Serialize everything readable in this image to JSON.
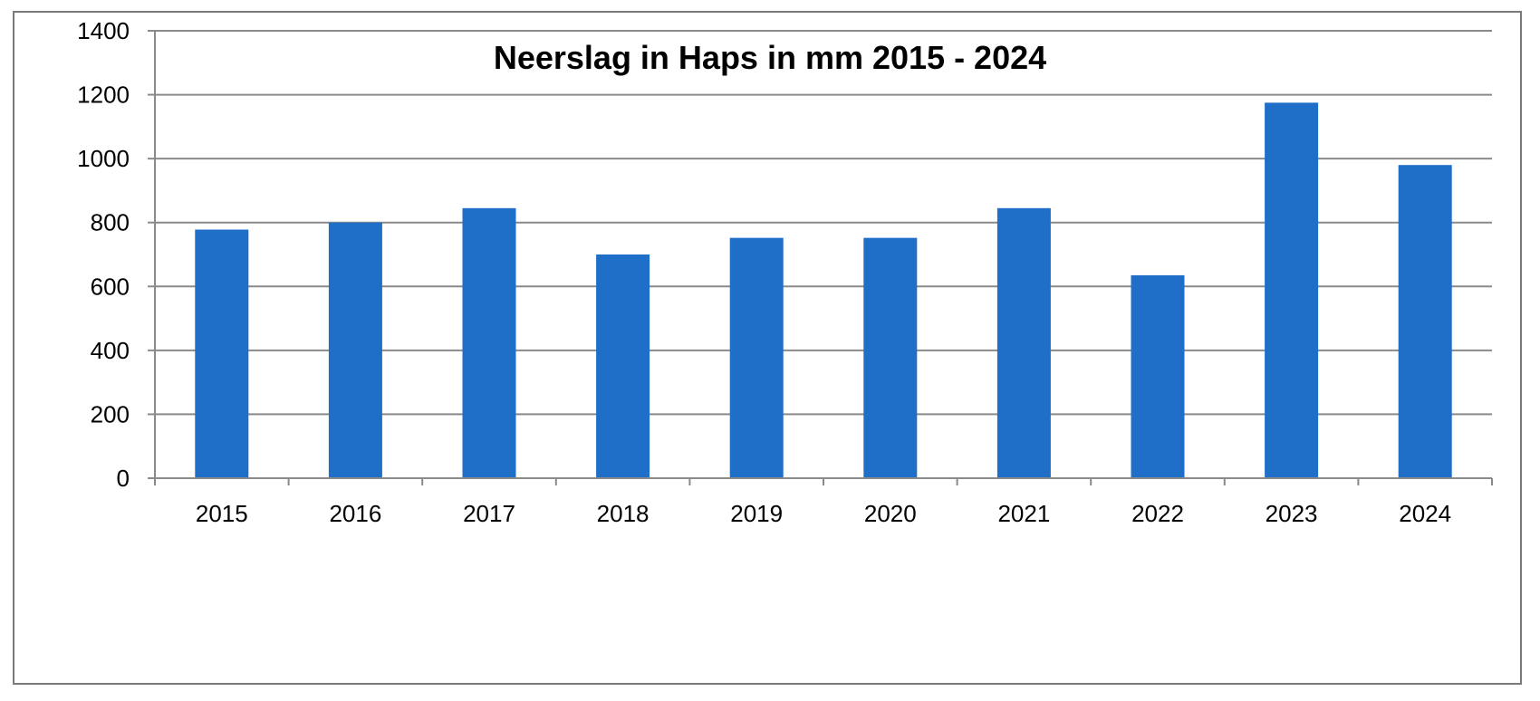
{
  "chart_data": {
    "type": "bar",
    "title": "Neerslag in Haps in mm 2015 - 2024",
    "xlabel": "",
    "ylabel": "",
    "categories": [
      "2015",
      "2016",
      "2017",
      "2018",
      "2019",
      "2020",
      "2021",
      "2022",
      "2023",
      "2024"
    ],
    "values": [
      778,
      800,
      845,
      700,
      752,
      752,
      845,
      635,
      1175,
      980
    ],
    "ylim": [
      0,
      1400
    ],
    "yticks": [
      0,
      200,
      400,
      600,
      800,
      1000,
      1200,
      1400
    ],
    "grid": true,
    "legend": "none",
    "colors": {
      "bar": "#1f6fc8",
      "grid": "#8a8a8a",
      "axis": "#8a8a8a",
      "frame": "#7a7a7a"
    }
  }
}
